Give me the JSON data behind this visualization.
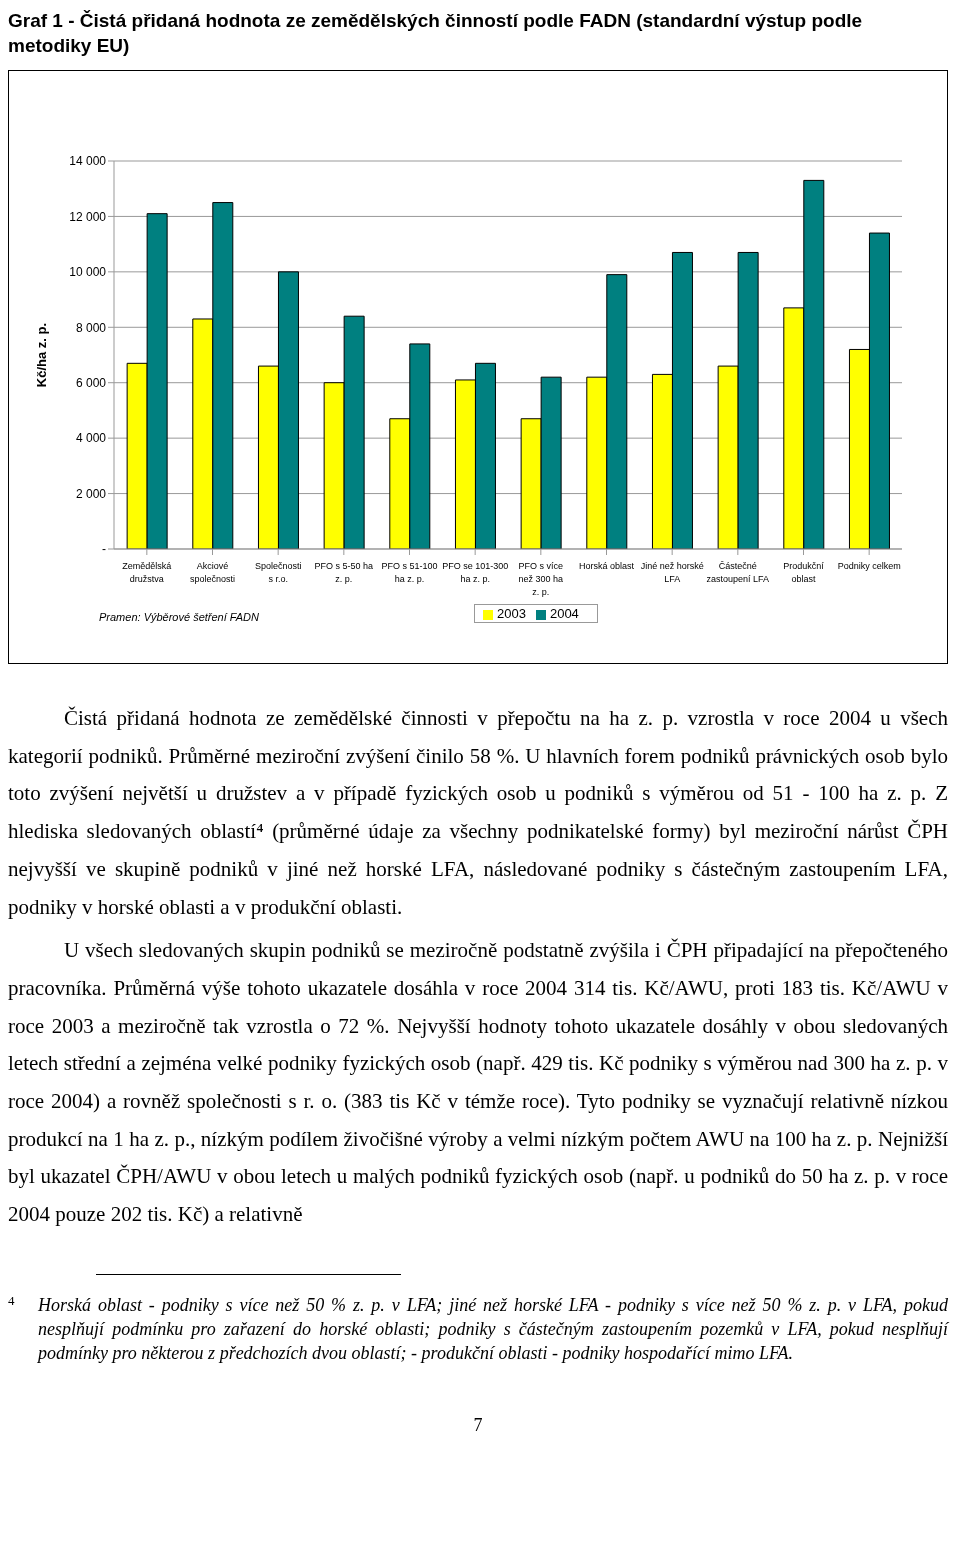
{
  "chart_data": {
    "type": "bar",
    "title": "Graf 1 - Čistá přidaná hodnota ze zemědělských činností podle FADN (standardní výstup podle metodiky EU)",
    "ylabel": "Kč/ha z. p.",
    "categories": [
      "Zemědělská\ndružstva",
      "Akciové\nspolečnosti",
      "Společnosti\ns r.o.",
      "PFO s 5-50 ha\nz. p.",
      "PFO s 51-100\nha z. p.",
      "PFO se 101-300\nha z. p.",
      "PFO s více\nnež 300 ha\nz. p.",
      "Horská oblast",
      "Jiné než horské\nLFA",
      "Částečné\nzastoupení LFA",
      "Produkční\noblast",
      "Podniky celkem"
    ],
    "series": [
      {
        "name": "2003",
        "color": "#ffff00",
        "values": [
          6700,
          8300,
          6600,
          6000,
          4700,
          6100,
          4700,
          6200,
          6300,
          6600,
          8700,
          7200
        ]
      },
      {
        "name": "2004",
        "color": "#008080",
        "values": [
          12100,
          12500,
          10000,
          8400,
          7400,
          6700,
          6200,
          9900,
          10700,
          10700,
          13300,
          11400
        ]
      }
    ],
    "ylim": [
      0,
      14000
    ],
    "yticks": [
      {
        "value": 0,
        "label": "-"
      },
      {
        "value": 2000,
        "label": "2 000"
      },
      {
        "value": 4000,
        "label": "4 000"
      },
      {
        "value": 6000,
        "label": "6 000"
      },
      {
        "value": 8000,
        "label": "8 000"
      },
      {
        "value": 10000,
        "label": "10 000"
      },
      {
        "value": 12000,
        "label": "12 000"
      },
      {
        "value": 14000,
        "label": "14 000"
      }
    ],
    "grid": "y",
    "legend": "bottom",
    "annotations": [
      "Pramen: Výběrové šetření FADN",
      "Čistá přidaná hodnota ze zemědělské činnosti v přepočtu na ha z. p. vzrostla v roce 2004 u všech kategorií podniků. Průměrné meziroční zvýšení činilo 58 %. U hlavních forem podniků právnických osob bylo toto zvýšení největší u družstev a v případě fyzických osob u podniků s výměrou od 51 - 100 ha z. p. Z hlediska sledovaných oblastí⁴ (průměrné údaje za všechny podnikatelské formy) byl meziroční nárůst ČPH nejvyšší ve skupině podniků v jiné než horské LFA, následované podniky s částečným zastoupením LFA, podniky v horské oblasti a v produkční oblasti.",
      "U všech sledovaných skupin podniků se meziročně podstatně zvýšila i ČPH připadající na přepočteného pracovníka. Průměrná výše tohoto ukazatele dosáhla v roce 2004 314 tis. Kč/AWU, proti 183 tis. Kč/AWU v roce 2003 a meziročně tak vzrostla o 72 %. Nejvyšší hodnoty tohoto ukazatele dosáhly v obou sledovaných letech střední a zejména velké podniky fyzických osob (např. 429 tis. Kč podniky s výměrou nad 300 ha z. p. v roce 2004) a rovněž společnosti s r. o. (383 tis Kč v témže roce). Tyto podniky se vyznačují relativně nízkou produkcí na 1 ha z. p., nízkým podílem živočišné výroby a velmi nízkým počtem AWU na 100 ha z. p. Nejnižší byl ukazatel ČPH/AWU v obou letech u malých podniků fyzických osob (např. u podniků do 50 ha z. p. v roce 2004 pouze 202 tis. Kč) a relativně",
      "4",
      "Horská oblast - podniky s více než 50 % z. p. v LFA; jiné než horské LFA - podniky s více než 50 % z. p. v LFA, pokud nesplňují podmínku pro zařazení do horské oblasti; podniky s částečným zastoupením pozemků v LFA, pokud nesplňují podmínky pro některou z předchozích dvou oblastí; - produkční oblasti - podniky hospodařící mimo LFA.",
      "7"
    ]
  }
}
